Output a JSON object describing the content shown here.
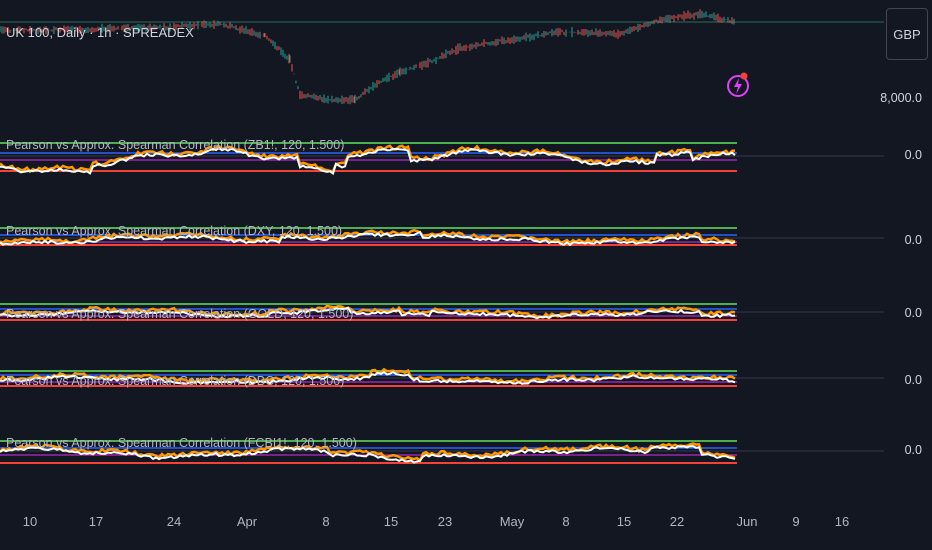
{
  "main_pane": {
    "title": "UK 100, Daily · 1h · SPREADEX",
    "price_label": "8,000.0"
  },
  "currency_button": {
    "label": "GBP"
  },
  "indicator_panes": [
    {
      "title": "Pearson vs Approx. Spearman Correlation (ZB1!, 120, 1.500)",
      "value_label": "0.0"
    },
    {
      "title": "Pearson vs Approx. Spearman Correlation (DXY, 120, 1.500)",
      "value_label": "0.0"
    },
    {
      "title": "Pearson vs Approx. Spearman Correlation (GOLD, 120, 1.500)",
      "value_label": "0.0"
    },
    {
      "title": "Pearson vs Approx. Spearman Correlation (DBC, 120, 1.500)",
      "value_label": "0.0"
    },
    {
      "title": "Pearson vs Approx. Spearman Correlation (FCBI1!, 120, 1.500)",
      "value_label": "0.0"
    }
  ],
  "time_axis": [
    "10",
    "17",
    "24",
    "Apr",
    "8",
    "15",
    "23",
    "May",
    "8",
    "15",
    "22",
    "Jun",
    "9",
    "16"
  ],
  "colors": {
    "background": "#131722",
    "up_candle": "#26a69a",
    "down_candle": "#ef5350",
    "pearson": "#ffffff",
    "spearman": "#ff9800",
    "upper_band": "#4caf50",
    "lower_band": "#f44336",
    "mid_line": "#2962ff",
    "flash_icon": "#e040fb"
  },
  "icons": {
    "alert": "flash-icon"
  }
}
